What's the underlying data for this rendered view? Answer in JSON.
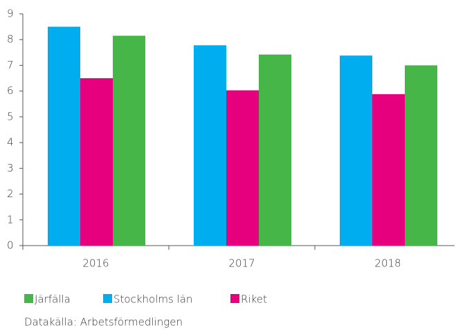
{
  "chart_data": {
    "type": "bar",
    "categories": [
      "2016",
      "2017",
      "2018"
    ],
    "series": [
      {
        "name": "Järfälla",
        "color": "#46b649",
        "values": [
          8.15,
          7.42,
          7.0
        ]
      },
      {
        "name": "Stockholms län",
        "color": "#00aeef",
        "values": [
          8.5,
          7.78,
          7.38
        ]
      },
      {
        "name": "Riket",
        "color": "#e6007e",
        "values": [
          6.5,
          6.03,
          5.88
        ]
      }
    ],
    "ylim": [
      0,
      9
    ],
    "yticks": [
      0,
      1,
      2,
      3,
      4,
      5,
      6,
      7,
      8,
      9
    ],
    "grid": false,
    "source": "Datakälla: Arbetsförmedlingen"
  }
}
